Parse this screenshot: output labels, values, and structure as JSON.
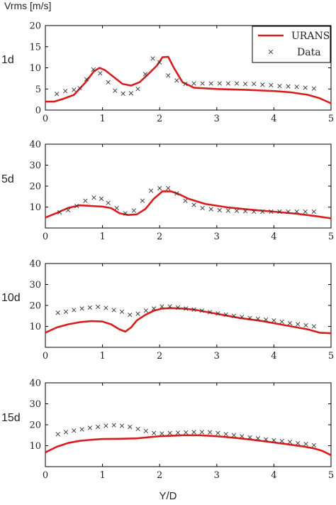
{
  "ylabel": "Vrms [m/s]",
  "xlabel": "Y/D",
  "legend": {
    "urans": "URANS",
    "data": "Data"
  },
  "colors": {
    "urans": "#d91c1c",
    "data": "#333333",
    "axis": "#000000"
  },
  "chart_data": [
    {
      "type": "line",
      "label": "1d",
      "xlim": [
        0,
        5
      ],
      "ylim": [
        0,
        20
      ],
      "xticks": [
        0,
        1,
        2,
        3,
        4,
        5
      ],
      "yticks": [
        0,
        5,
        10,
        15,
        20
      ],
      "legend_position": "top-right",
      "series": [
        {
          "name": "URANS",
          "style": "line",
          "x": [
            0,
            0.15,
            0.3,
            0.5,
            0.7,
            0.85,
            0.95,
            1.05,
            1.2,
            1.35,
            1.5,
            1.65,
            1.8,
            1.95,
            2.05,
            2.15,
            2.25,
            2.4,
            2.6,
            3.0,
            3.5,
            4.0,
            4.3,
            4.6,
            4.8,
            5.0
          ],
          "y": [
            2.0,
            2.0,
            2.6,
            3.6,
            6.5,
            9.2,
            10.0,
            9.4,
            7.8,
            6.2,
            5.8,
            6.6,
            8.5,
            10.5,
            12.5,
            12.6,
            10.0,
            6.6,
            5.3,
            5.0,
            4.8,
            4.5,
            4.2,
            3.6,
            2.8,
            1.6
          ]
        },
        {
          "name": "Data",
          "style": "marker",
          "x": [
            0.2,
            0.35,
            0.5,
            0.6,
            0.72,
            0.84,
            0.96,
            1.1,
            1.22,
            1.36,
            1.5,
            1.62,
            1.75,
            1.88,
            2.0,
            2.15,
            2.3,
            2.45,
            2.6,
            2.75,
            2.9,
            3.05,
            3.2,
            3.35,
            3.5,
            3.65,
            3.8,
            3.95,
            4.1,
            4.25,
            4.4,
            4.55,
            4.7
          ],
          "y": [
            3.8,
            4.5,
            4.8,
            5.2,
            7.3,
            9.6,
            8.7,
            6.6,
            4.6,
            3.9,
            4.0,
            5.0,
            8.5,
            12.2,
            11.3,
            8.2,
            7.0,
            6.2,
            6.3,
            6.3,
            6.3,
            6.3,
            6.3,
            6.3,
            6.2,
            6.2,
            6.0,
            5.9,
            5.7,
            5.6,
            5.5,
            5.3,
            5.1
          ]
        }
      ]
    },
    {
      "type": "line",
      "label": "5d",
      "xlim": [
        0,
        5
      ],
      "ylim": [
        0,
        40
      ],
      "xticks": [
        0,
        1,
        2,
        3,
        4,
        5
      ],
      "yticks": [
        10,
        20,
        30,
        40
      ],
      "series": [
        {
          "name": "URANS",
          "style": "line",
          "x": [
            0,
            0.2,
            0.4,
            0.6,
            0.8,
            1.0,
            1.15,
            1.3,
            1.45,
            1.6,
            1.75,
            1.9,
            2.05,
            2.2,
            2.35,
            2.5,
            2.8,
            3.2,
            3.6,
            4.0,
            4.4,
            4.7,
            5.0
          ],
          "y": [
            5.0,
            7.2,
            9.6,
            10.8,
            10.5,
            10.2,
            9.5,
            7.0,
            6.2,
            6.5,
            9.0,
            14.0,
            17.5,
            17.5,
            16.0,
            14.0,
            11.5,
            9.8,
            8.7,
            7.8,
            6.8,
            5.8,
            4.6
          ]
        },
        {
          "name": "Data",
          "style": "marker",
          "x": [
            0.25,
            0.4,
            0.55,
            0.7,
            0.85,
            0.98,
            1.1,
            1.25,
            1.4,
            1.55,
            1.7,
            1.85,
            2.0,
            2.15,
            2.3,
            2.45,
            2.6,
            2.75,
            2.9,
            3.05,
            3.2,
            3.35,
            3.5,
            3.65,
            3.8,
            3.95,
            4.1,
            4.25,
            4.4,
            4.55,
            4.7
          ],
          "y": [
            7.5,
            8.5,
            10.5,
            13.0,
            14.5,
            14.0,
            12.0,
            9.5,
            7.0,
            8.3,
            13.0,
            17.8,
            19.0,
            19.0,
            16.5,
            13.0,
            11.0,
            9.5,
            9.0,
            8.5,
            8.3,
            8.2,
            8.0,
            7.8,
            7.8,
            7.8,
            7.8,
            7.8,
            7.8,
            7.8,
            7.8
          ]
        }
      ]
    },
    {
      "type": "line",
      "label": "10d",
      "xlim": [
        0,
        5
      ],
      "ylim": [
        0,
        40
      ],
      "xticks": [
        0,
        1,
        2,
        3,
        4,
        5
      ],
      "yticks": [
        10,
        20,
        30,
        40
      ],
      "series": [
        {
          "name": "URANS",
          "style": "line",
          "x": [
            0,
            0.2,
            0.4,
            0.6,
            0.8,
            1.0,
            1.15,
            1.3,
            1.4,
            1.5,
            1.6,
            1.75,
            1.9,
            2.05,
            2.2,
            2.4,
            2.6,
            2.8,
            3.0,
            3.4,
            3.8,
            4.2,
            4.6,
            4.8,
            5.0
          ],
          "y": [
            7.0,
            9.5,
            11.0,
            12.0,
            12.5,
            12.3,
            11.0,
            8.5,
            7.5,
            9.5,
            12.8,
            15.5,
            17.5,
            18.5,
            18.7,
            18.5,
            18.0,
            17.0,
            16.0,
            14.0,
            12.5,
            10.5,
            8.5,
            7.0,
            6.7
          ]
        },
        {
          "name": "Data",
          "style": "marker",
          "x": [
            0.22,
            0.36,
            0.5,
            0.64,
            0.78,
            0.92,
            1.06,
            1.2,
            1.34,
            1.48,
            1.62,
            1.76,
            1.9,
            2.04,
            2.18,
            2.32,
            2.46,
            2.6,
            2.74,
            2.88,
            3.02,
            3.16,
            3.3,
            3.44,
            3.58,
            3.72,
            3.86,
            4.0,
            4.14,
            4.28,
            4.42,
            4.56,
            4.7
          ],
          "y": [
            16.5,
            17.0,
            17.8,
            18.5,
            19.0,
            19.3,
            18.8,
            17.8,
            17.0,
            15.5,
            16.0,
            17.5,
            18.5,
            19.5,
            19.5,
            19.0,
            18.5,
            18.0,
            17.5,
            16.8,
            16.2,
            15.6,
            15.0,
            14.5,
            14.0,
            13.6,
            13.2,
            12.8,
            12.2,
            11.5,
            11.0,
            10.5,
            10.0
          ]
        }
      ]
    },
    {
      "type": "line",
      "label": "15d",
      "xlim": [
        0,
        5
      ],
      "ylim": [
        0,
        40
      ],
      "xticks": [
        0,
        1,
        2,
        3,
        4,
        5
      ],
      "yticks": [
        10,
        20,
        30,
        40
      ],
      "series": [
        {
          "name": "URANS",
          "style": "line",
          "x": [
            0,
            0.2,
            0.4,
            0.6,
            0.8,
            1.0,
            1.3,
            1.6,
            2.0,
            2.4,
            2.7,
            3.0,
            3.3,
            3.6,
            3.9,
            4.2,
            4.5,
            4.7,
            4.85,
            5.0
          ],
          "y": [
            6.8,
            9.5,
            11.3,
            12.3,
            12.8,
            13.2,
            13.3,
            13.5,
            14.5,
            15.0,
            15.0,
            14.5,
            13.8,
            12.9,
            11.9,
            10.8,
            9.7,
            8.7,
            7.5,
            5.5
          ]
        },
        {
          "name": "Data",
          "style": "marker",
          "x": [
            0.22,
            0.36,
            0.5,
            0.64,
            0.78,
            0.92,
            1.06,
            1.2,
            1.34,
            1.48,
            1.62,
            1.76,
            1.9,
            2.04,
            2.18,
            2.32,
            2.46,
            2.6,
            2.74,
            2.88,
            3.02,
            3.16,
            3.3,
            3.44,
            3.58,
            3.72,
            3.86,
            4.0,
            4.14,
            4.28,
            4.42,
            4.56,
            4.7
          ],
          "y": [
            15.5,
            16.5,
            17.2,
            17.8,
            18.5,
            19.0,
            19.5,
            19.8,
            19.5,
            19.0,
            18.0,
            17.0,
            16.0,
            15.8,
            16.0,
            16.2,
            16.3,
            16.5,
            16.5,
            16.4,
            16.0,
            15.5,
            15.0,
            14.5,
            14.0,
            13.5,
            13.0,
            12.6,
            12.2,
            11.8,
            11.2,
            10.8,
            10.2
          ]
        }
      ]
    }
  ]
}
